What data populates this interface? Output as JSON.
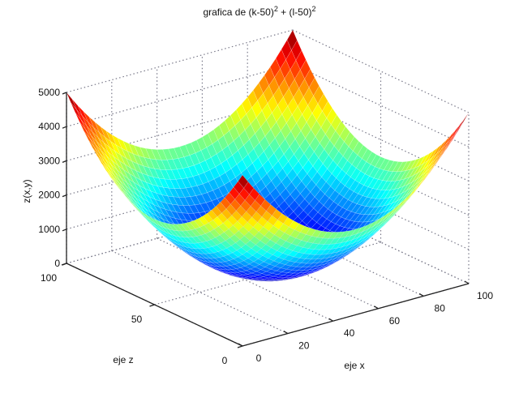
{
  "chart_data": {
    "type": "surface",
    "title": "grafica de (k-50)^2 + (l-50)^2",
    "title_parts": {
      "prefix": "grafica de (k-50)",
      "exp1": "2",
      "mid": " + (l-50)",
      "exp2": "2"
    },
    "function": "z = (k-50)^2 + (l-50)^2",
    "xlabel": "eje x",
    "ylabel": "eje z",
    "zlabel": "z(x,y)",
    "xlim": [
      0,
      100
    ],
    "ylim": [
      0,
      100
    ],
    "zlim": [
      0,
      5000
    ],
    "x_ticks": [
      0,
      20,
      40,
      60,
      80,
      100
    ],
    "y_ticks": [
      0,
      50,
      100
    ],
    "z_ticks": [
      0,
      1000,
      2000,
      3000,
      4000,
      5000
    ],
    "grid": true,
    "colormap": "jet",
    "corner_values": {
      "x0_y0": 5000,
      "x100_y0": 5000,
      "x0_y100": 5000,
      "x100_y100": 5000,
      "x50_y50": 0
    },
    "legend": null
  },
  "colors": {
    "axis": "#222222",
    "grid": "#7a7a8a",
    "background": "#ffffff"
  }
}
